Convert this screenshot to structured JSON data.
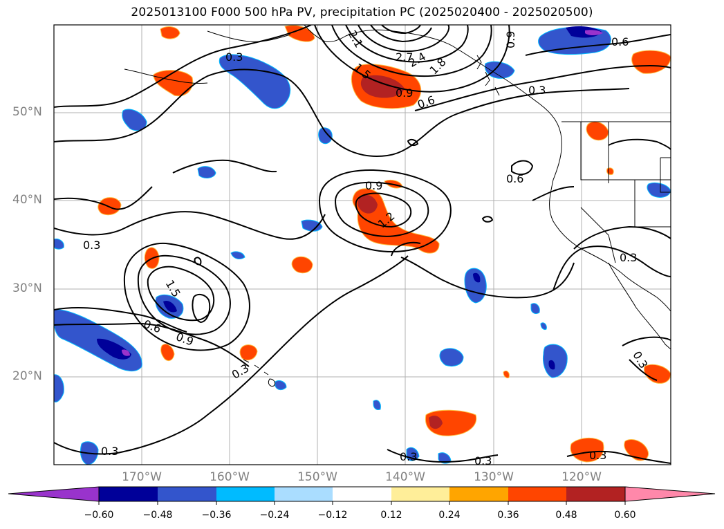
{
  "title": "2025013100 F000 500 hPa PV, precipitation PC (2025020400 - 2025020500)",
  "lat_labels": [
    "50°N",
    "40°N",
    "30°N",
    "20°N"
  ],
  "lon_labels": [
    "170°W",
    "160°W",
    "150°W",
    "140°W",
    "130°W",
    "120°W"
  ],
  "contour_labels": [
    "2.1",
    "2.7",
    "2.4",
    "1.8",
    "1.5",
    "0.9",
    "0.6",
    "0.9",
    "0.6",
    "0.3",
    "0.3",
    "0.3",
    "0.6",
    "0.9",
    "1.2",
    "0.3",
    "1.5",
    "0.6",
    "0.9",
    "0.3",
    "0.3",
    "0.3",
    "0.3",
    "0.3",
    "0.3"
  ],
  "colorbar": {
    "ticks": [
      "−0.60",
      "−0.48",
      "−0.36",
      "−0.24",
      "−0.12",
      "0.12",
      "0.24",
      "0.36",
      "0.48",
      "0.60"
    ],
    "colors": [
      "#9933cc",
      "#000099",
      "#3355cc",
      "#00bbff",
      "#aaddff",
      "#ffffff",
      "#ffee99",
      "#ffa500",
      "#ff4500",
      "#b22222",
      "#ff88aa"
    ]
  }
}
